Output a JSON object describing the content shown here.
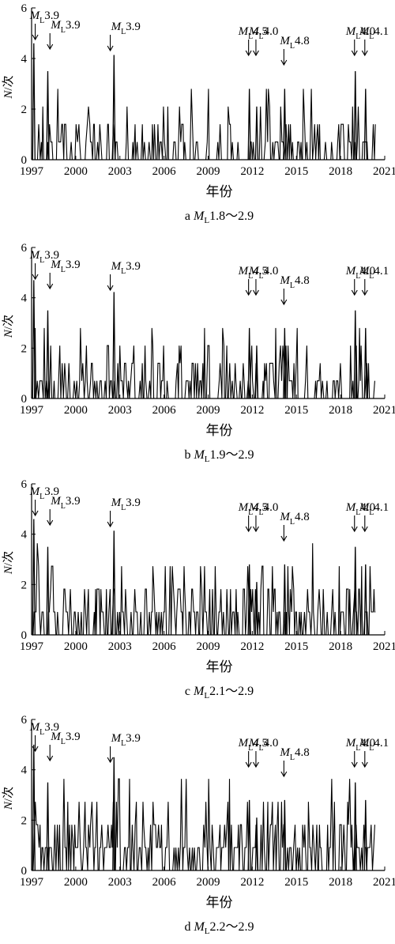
{
  "xlabel": "年份",
  "ylabel": "N/次",
  "chart_data": [
    {
      "type": "line",
      "caption": {
        "prefix": "a ",
        "m": "M",
        "text": "1.8～2.9"
      },
      "xlabel": "年份",
      "ylabel": "N/次",
      "xlim": [
        1997,
        2021
      ],
      "ylim": [
        0,
        6
      ],
      "xticks": [
        "1997",
        "2000",
        "2003",
        "2006",
        "2009",
        "2012",
        "2015",
        "2018",
        "2021"
      ],
      "yticks": [
        "0",
        "2",
        "4",
        "6"
      ],
      "peak": 4.6,
      "annotations": [
        {
          "m": "M",
          "sub": "L",
          "value": "3.9",
          "x": 1997.3
        },
        {
          "m": "M",
          "sub": "L",
          "value": "3.9",
          "x": 1998.3
        },
        {
          "m": "M",
          "sub": "L",
          "value": "3.9",
          "x": 2002.4
        },
        {
          "m": "M",
          "sub": "L",
          "value": "4.5",
          "x": 2011.8
        },
        {
          "m": "M",
          "sub": "L",
          "value": "4.0",
          "x": 2012.3
        },
        {
          "m": "M",
          "sub": "L",
          "value": "4.8",
          "x": 2014.2
        },
        {
          "m": "M",
          "sub": "L",
          "value": "4.0",
          "x": 2019.0
        },
        {
          "m": "M",
          "sub": "L",
          "value": "4.1",
          "x": 2019.7
        }
      ]
    },
    {
      "type": "line",
      "caption": {
        "prefix": "b ",
        "m": "M",
        "text": "1.9～2.9"
      },
      "xlabel": "年份",
      "ylabel": "N/次",
      "xlim": [
        1997,
        2021
      ],
      "ylim": [
        0,
        6
      ],
      "xticks": [
        "1997",
        "2000",
        "2003",
        "2006",
        "2009",
        "2012",
        "2015",
        "2018",
        "2021"
      ],
      "yticks": [
        "0",
        "2",
        "4",
        "6"
      ],
      "peak": 4.7,
      "annotations": [
        {
          "m": "M",
          "sub": "L",
          "value": "3.9",
          "x": 1997.3
        },
        {
          "m": "M",
          "sub": "L",
          "value": "3.9",
          "x": 1998.3
        },
        {
          "m": "M",
          "sub": "L",
          "value": "3.9",
          "x": 2002.4
        },
        {
          "m": "M",
          "sub": "L",
          "value": "4.5",
          "x": 2011.8
        },
        {
          "m": "M",
          "sub": "L",
          "value": "4.0",
          "x": 2012.3
        },
        {
          "m": "M",
          "sub": "L",
          "value": "4.8",
          "x": 2014.2
        },
        {
          "m": "M",
          "sub": "L",
          "value": "4.0",
          "x": 2019.0
        },
        {
          "m": "M",
          "sub": "L",
          "value": "4.1",
          "x": 2019.7
        }
      ]
    },
    {
      "type": "line",
      "caption": {
        "prefix": "c ",
        "m": "M",
        "text": "2.1～2.9"
      },
      "xlabel": "年份",
      "ylabel": "N/次",
      "xlim": [
        1997,
        2021
      ],
      "ylim": [
        0,
        6
      ],
      "xticks": [
        "1997",
        "2000",
        "2003",
        "2006",
        "2009",
        "2012",
        "2015",
        "2018",
        "2021"
      ],
      "yticks": [
        "0",
        "2",
        "4",
        "6"
      ],
      "peak": 4.6,
      "annotations": [
        {
          "m": "M",
          "sub": "L",
          "value": "3.9",
          "x": 1997.3
        },
        {
          "m": "M",
          "sub": "L",
          "value": "3.9",
          "x": 1998.3
        },
        {
          "m": "M",
          "sub": "L",
          "value": "3.9",
          "x": 2002.4
        },
        {
          "m": "M",
          "sub": "L",
          "value": "4.5",
          "x": 2011.8
        },
        {
          "m": "M",
          "sub": "L",
          "value": "4.0",
          "x": 2012.3
        },
        {
          "m": "M",
          "sub": "L",
          "value": "4.8",
          "x": 2014.2
        },
        {
          "m": "M",
          "sub": "L",
          "value": "4.0",
          "x": 2019.0
        },
        {
          "m": "M",
          "sub": "L",
          "value": "4.1",
          "x": 2019.7
        }
      ]
    },
    {
      "type": "line",
      "caption": {
        "prefix": "d ",
        "m": "M",
        "text": "2.2～2.9"
      },
      "xlabel": "年份",
      "ylabel": "N/次",
      "xlim": [
        1997,
        2021
      ],
      "ylim": [
        0,
        6
      ],
      "xticks": [
        "1997",
        "2000",
        "2003",
        "2006",
        "2009",
        "2012",
        "2015",
        "2018",
        "2021"
      ],
      "yticks": [
        "0",
        "2",
        "4",
        "6"
      ],
      "peak": 5.0,
      "annotations": [
        {
          "m": "M",
          "sub": "L",
          "value": "3.9",
          "x": 1997.3
        },
        {
          "m": "M",
          "sub": "L",
          "value": "3.9",
          "x": 1998.3
        },
        {
          "m": "M",
          "sub": "L",
          "value": "3.9",
          "x": 2002.4
        },
        {
          "m": "M",
          "sub": "L",
          "value": "4.5",
          "x": 2011.8
        },
        {
          "m": "M",
          "sub": "L",
          "value": "4.0",
          "x": 2012.3
        },
        {
          "m": "M",
          "sub": "L",
          "value": "4.8",
          "x": 2014.2
        },
        {
          "m": "M",
          "sub": "L",
          "value": "4.0",
          "x": 2019.0
        },
        {
          "m": "M",
          "sub": "L",
          "value": "4.1",
          "x": 2019.7
        }
      ]
    }
  ]
}
